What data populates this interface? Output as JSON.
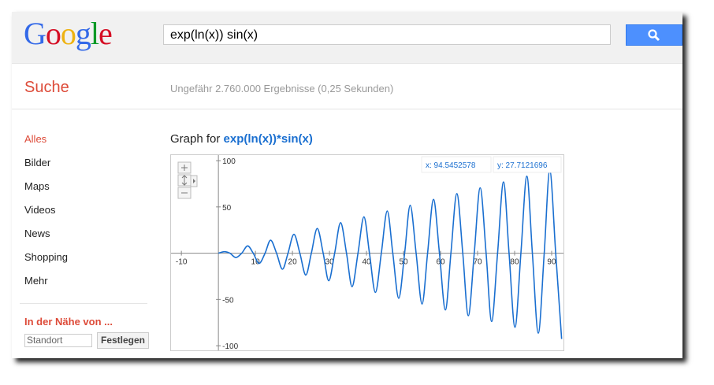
{
  "header": {
    "logo": "Google",
    "query": "exp(ln(x)) sin(x)"
  },
  "results": {
    "section": "Suche",
    "stats": "Ungefähr 2.760.000 Ergebnisse (0,25 Sekunden)"
  },
  "nav": {
    "items": [
      "Alles",
      "Bilder",
      "Maps",
      "Videos",
      "News",
      "Shopping",
      "Mehr"
    ],
    "nearby_title": "In der Nähe von ...",
    "location_placeholder": "Standort",
    "set_button": "Festlegen"
  },
  "graph": {
    "title_prefix": "Graph for",
    "function": "exp(ln(x))*sin(x)",
    "tooltip_x": "x: 94.5452578",
    "tooltip_y": "y: 27.7121696"
  },
  "chart_data": {
    "type": "line",
    "x": [
      0,
      1.6,
      3.1,
      4.7,
      6.3,
      7.9,
      9.4,
      11.0,
      12.6,
      14.1,
      15.7,
      17.3,
      18.8,
      20.4,
      22.0,
      23.6,
      25.1,
      26.7,
      28.3,
      29.8,
      31.4,
      33.0,
      34.6,
      36.1,
      37.7,
      39.3,
      40.8,
      42.4,
      44.0,
      45.6,
      47.1,
      48.7,
      50.3,
      51.8,
      53.4,
      55.0,
      56.5,
      58.1,
      59.7,
      61.3,
      62.8,
      64.4,
      66.0,
      67.5,
      69.1,
      70.7,
      72.3,
      73.8,
      75.4,
      77.0,
      78.5,
      80.1,
      81.7,
      83.3,
      84.8,
      86.4,
      88.0,
      89.5,
      91.1,
      92.7
    ],
    "series": [
      {
        "color": "#1a6fd0",
        "values": [
          0,
          1.6,
          0,
          -4.7,
          0,
          7.9,
          0,
          -11.0,
          0,
          14.1,
          0,
          -17.3,
          0,
          20.4,
          0,
          -23.6,
          0,
          26.7,
          0,
          -29.8,
          0,
          33.0,
          0,
          -36.1,
          0,
          39.3,
          0,
          -42.4,
          0,
          45.6,
          0,
          -48.7,
          0,
          51.8,
          0,
          -55.0,
          0,
          58.1,
          0,
          -61.3,
          0,
          64.4,
          0,
          -67.5,
          0,
          70.7,
          0,
          -73.8,
          0,
          77.0,
          0,
          -80.1,
          0,
          83.3,
          0,
          -86.4,
          0,
          89.5,
          0,
          -92.7
        ]
      }
    ],
    "xlim": [
      -12.8,
      93.2
    ],
    "ylim": [
      -105,
      106
    ],
    "xticks": [
      -10,
      10,
      20,
      30,
      40,
      50,
      60,
      70,
      80,
      90
    ],
    "yticks": [
      100,
      50,
      -50,
      -100
    ]
  }
}
